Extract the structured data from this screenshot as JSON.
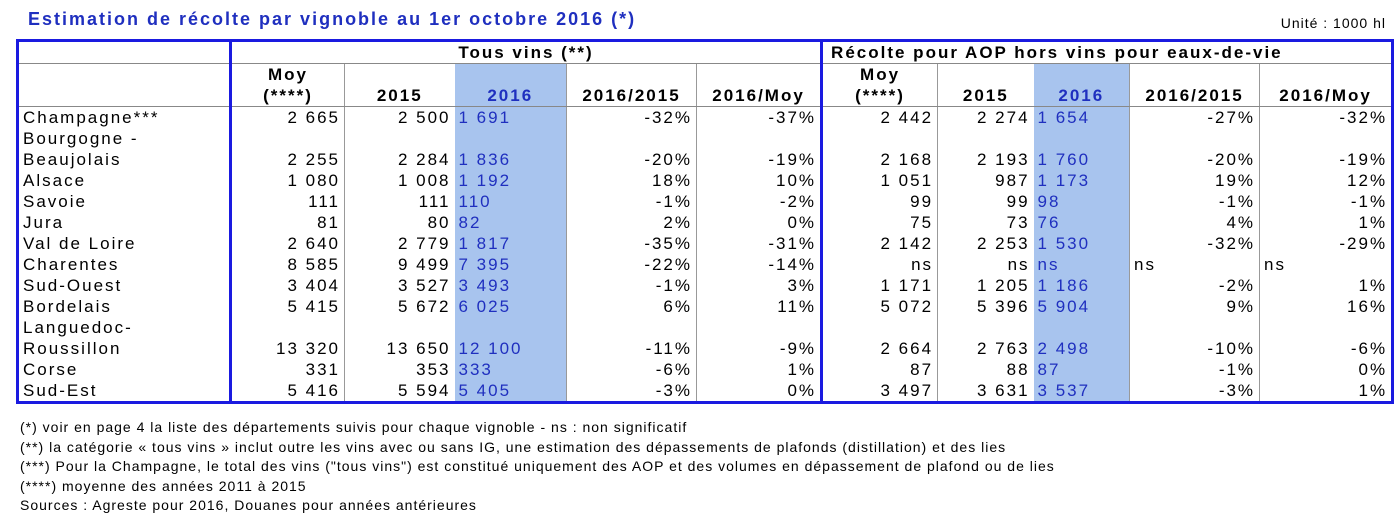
{
  "title": "Estimation de récolte par vignoble au 1er octobre 2016 (*)",
  "unit": "Unité : 1000 hl",
  "groups": {
    "g1": "Tous vins (**)",
    "g2": "Récolte pour AOP hors vins pour eaux-de-vie"
  },
  "headers": {
    "moy1": "Moy",
    "moy2": "(****)",
    "y2015": "2015",
    "y2016": "2016",
    "r1": "2016/2015",
    "r2": "2016/Moy"
  },
  "rows": [
    {
      "label": "Champagne***",
      "v": [
        "2 665",
        "2 500",
        "1 691",
        "-32%",
        "-37%",
        "2 442",
        "2 274",
        "1 654",
        "-27%",
        "-32%"
      ]
    },
    {
      "label": "Bourgogne - Beaujolais",
      "v": [
        "2 255",
        "2 284",
        "1 836",
        "-20%",
        "-19%",
        "2 168",
        "2 193",
        "1 760",
        "-20%",
        "-19%"
      ]
    },
    {
      "label": "Alsace",
      "v": [
        "1 080",
        "1 008",
        "1 192",
        "18%",
        "10%",
        "1 051",
        "987",
        "1 173",
        "19%",
        "12%"
      ]
    },
    {
      "label": "Savoie",
      "v": [
        "111",
        "111",
        "110",
        "-1%",
        "-2%",
        "99",
        "99",
        "98",
        "-1%",
        "-1%"
      ]
    },
    {
      "label": "Jura",
      "v": [
        "81",
        "80",
        "82",
        "2%",
        "0%",
        "75",
        "73",
        "76",
        "4%",
        "1%"
      ]
    },
    {
      "label": "Val de Loire",
      "v": [
        "2 640",
        "2 779",
        "1 817",
        "-35%",
        "-31%",
        "2 142",
        "2 253",
        "1 530",
        "-32%",
        "-29%"
      ]
    },
    {
      "label": "Charentes",
      "v": [
        "8 585",
        "9 499",
        "7 395",
        "-22%",
        "-14%",
        "ns",
        "ns",
        "ns",
        "ns",
        "ns"
      ]
    },
    {
      "label": "Sud-Ouest",
      "v": [
        "3 404",
        "3 527",
        "3 493",
        "-1%",
        "3%",
        "1 171",
        "1 205",
        "1 186",
        "-2%",
        "1%"
      ]
    },
    {
      "label": "Bordelais",
      "v": [
        "5 415",
        "5 672",
        "6 025",
        "6%",
        "11%",
        "5 072",
        "5 396",
        "5 904",
        "9%",
        "16%"
      ]
    },
    {
      "label": "Languedoc-Roussillon",
      "v": [
        "13 320",
        "13 650",
        "12 100",
        "-11%",
        "-9%",
        "2 664",
        "2 763",
        "2 498",
        "-10%",
        "-6%"
      ]
    },
    {
      "label": "Corse",
      "v": [
        "331",
        "353",
        "333",
        "-6%",
        "1%",
        "87",
        "88",
        "87",
        "-1%",
        "0%"
      ]
    },
    {
      "label": "Sud-Est",
      "v": [
        "5 416",
        "5 594",
        "5 405",
        "-3%",
        "0%",
        "3 497",
        "3 631",
        "3 537",
        "-3%",
        "1%"
      ]
    }
  ],
  "notes": [
    "(*) voir en page 4 la liste des départements suivis pour chaque vignoble - ns : non significatif",
    "(**) la catégorie « tous vins » inclut outre les vins avec ou sans IG, une estimation des dépassements de plafonds (distillation) et des lies",
    "(***) Pour la Champagne, le total des vins (\"tous vins\") est constitué uniquement des AOP et des volumes en dépassement de plafond ou de lies",
    "(****) moyenne des années 2011 à 2015",
    "Sources : Agreste pour 2016, Douanes pour années antérieures"
  ]
}
